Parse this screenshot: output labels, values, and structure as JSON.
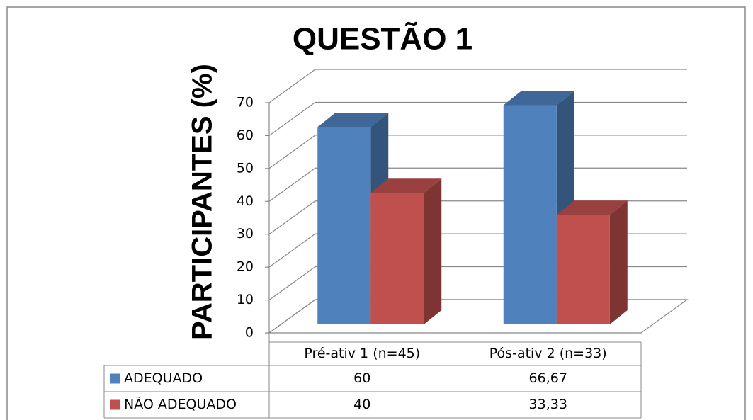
{
  "chart_data": {
    "type": "bar3d",
    "title": "QUESTÃO 1",
    "y_label": "PARTICIPANTES (%)",
    "categories": [
      "Pré-ativ 1 (n=45)",
      "Pós-ativ 2 (n=33)"
    ],
    "series": [
      {
        "name": "ADEQUADO",
        "color": "#4f81bd",
        "values": [
          60,
          66.67
        ],
        "value_labels": [
          "60",
          "66,67"
        ]
      },
      {
        "name": "NÃO ADEQUADO",
        "color": "#c0504d",
        "values": [
          40,
          33.33
        ],
        "value_labels": [
          "40",
          "33,33"
        ]
      }
    ],
    "ylim": [
      0,
      70
    ],
    "yticks": [
      0,
      10,
      20,
      30,
      40,
      50,
      60,
      70
    ],
    "grid": true
  }
}
